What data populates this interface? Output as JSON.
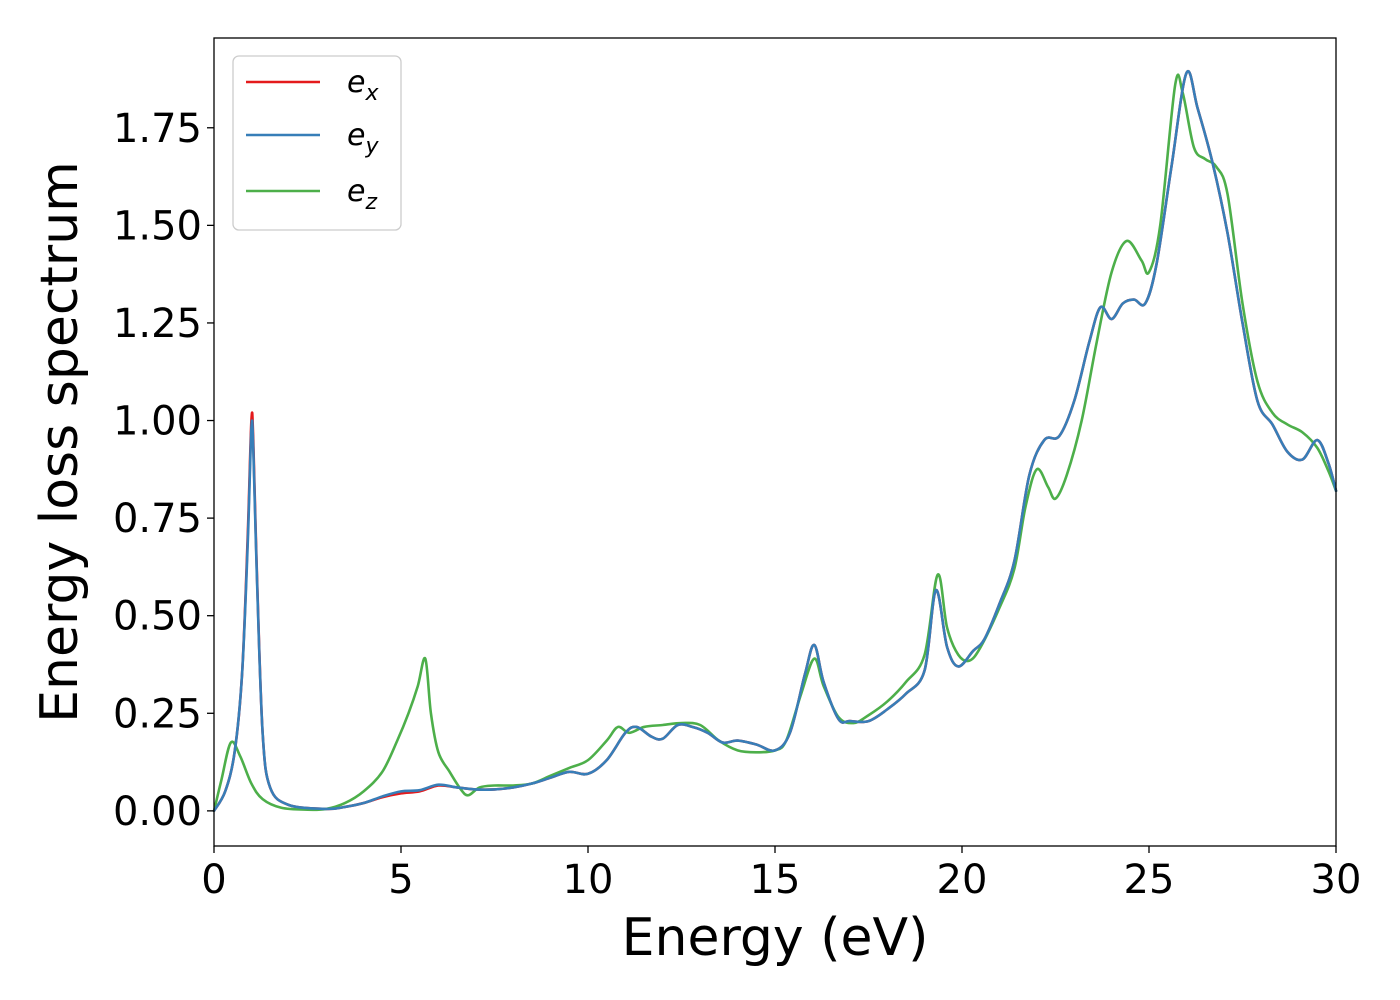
{
  "chart_data": {
    "type": "line",
    "title": "",
    "xlabel": "Energy (eV)",
    "ylabel": "Energy loss spectrum",
    "xlim": [
      0,
      30
    ],
    "ylim": [
      -0.09,
      1.98
    ],
    "xticks": [
      0,
      5,
      10,
      15,
      20,
      25,
      30
    ],
    "xtick_labels": [
      "0",
      "5",
      "10",
      "15",
      "20",
      "25",
      "30"
    ],
    "yticks": [
      0.0,
      0.25,
      0.5,
      0.75,
      1.0,
      1.25,
      1.5,
      1.75
    ],
    "ytick_labels": [
      "0.00",
      "0.25",
      "0.50",
      "0.75",
      "1.00",
      "1.25",
      "1.50",
      "1.75"
    ],
    "grid": false,
    "legend_position": "top-left",
    "series": [
      {
        "name": "e_x",
        "label_base": "e",
        "label_sub": "x",
        "color": "#e41a1c",
        "points": [
          [
            0,
            0.0
          ],
          [
            0.3,
            0.05
          ],
          [
            0.55,
            0.15
          ],
          [
            0.75,
            0.35
          ],
          [
            0.9,
            0.7
          ],
          [
            1.0,
            1.0
          ],
          [
            1.05,
            0.95
          ],
          [
            1.15,
            0.6
          ],
          [
            1.3,
            0.2
          ],
          [
            1.5,
            0.06
          ],
          [
            2.0,
            0.015
          ],
          [
            3.0,
            0.005
          ],
          [
            3.5,
            0.01
          ],
          [
            4.0,
            0.02
          ],
          [
            4.5,
            0.035
          ],
          [
            5.0,
            0.045
          ],
          [
            5.5,
            0.05
          ],
          [
            6.0,
            0.065
          ],
          [
            6.5,
            0.06
          ],
          [
            7.0,
            0.055
          ],
          [
            7.5,
            0.055
          ],
          [
            8.0,
            0.06
          ],
          [
            8.5,
            0.07
          ],
          [
            9.0,
            0.085
          ],
          [
            9.5,
            0.1
          ],
          [
            10.0,
            0.095
          ],
          [
            10.5,
            0.13
          ],
          [
            11.0,
            0.2
          ],
          [
            11.3,
            0.215
          ],
          [
            11.7,
            0.19
          ],
          [
            12.0,
            0.185
          ],
          [
            12.4,
            0.22
          ],
          [
            12.8,
            0.215
          ],
          [
            13.2,
            0.2
          ],
          [
            13.6,
            0.175
          ],
          [
            14.0,
            0.18
          ],
          [
            14.5,
            0.17
          ],
          [
            15.0,
            0.155
          ],
          [
            15.4,
            0.2
          ],
          [
            15.8,
            0.35
          ],
          [
            16.05,
            0.425
          ],
          [
            16.3,
            0.33
          ],
          [
            16.7,
            0.235
          ],
          [
            17.0,
            0.23
          ],
          [
            17.5,
            0.23
          ],
          [
            18.0,
            0.26
          ],
          [
            18.5,
            0.3
          ],
          [
            19.0,
            0.36
          ],
          [
            19.3,
            0.565
          ],
          [
            19.6,
            0.42
          ],
          [
            19.9,
            0.37
          ],
          [
            20.3,
            0.41
          ],
          [
            20.6,
            0.44
          ],
          [
            21.0,
            0.53
          ],
          [
            21.4,
            0.64
          ],
          [
            21.8,
            0.86
          ],
          [
            22.2,
            0.95
          ],
          [
            22.6,
            0.96
          ],
          [
            23.0,
            1.05
          ],
          [
            23.4,
            1.2
          ],
          [
            23.7,
            1.29
          ],
          [
            24.0,
            1.26
          ],
          [
            24.3,
            1.3
          ],
          [
            24.6,
            1.31
          ],
          [
            24.9,
            1.3
          ],
          [
            25.2,
            1.4
          ],
          [
            25.6,
            1.65
          ],
          [
            26.0,
            1.89
          ],
          [
            26.3,
            1.8
          ],
          [
            26.7,
            1.66
          ],
          [
            27.1,
            1.48
          ],
          [
            27.5,
            1.25
          ],
          [
            27.9,
            1.05
          ],
          [
            28.3,
            0.99
          ],
          [
            28.7,
            0.92
          ],
          [
            29.1,
            0.9
          ],
          [
            29.5,
            0.95
          ],
          [
            29.8,
            0.89
          ],
          [
            30.0,
            0.82
          ]
        ]
      },
      {
        "name": "e_y",
        "label_base": "e",
        "label_sub": "y",
        "color": "#377eb8",
        "points": [
          [
            0,
            0.0
          ],
          [
            0.3,
            0.05
          ],
          [
            0.55,
            0.15
          ],
          [
            0.75,
            0.35
          ],
          [
            0.9,
            0.68
          ],
          [
            1.0,
            0.98
          ],
          [
            1.05,
            0.93
          ],
          [
            1.15,
            0.59
          ],
          [
            1.3,
            0.2
          ],
          [
            1.5,
            0.06
          ],
          [
            2.0,
            0.015
          ],
          [
            3.0,
            0.005
          ],
          [
            3.5,
            0.01
          ],
          [
            4.0,
            0.02
          ],
          [
            4.5,
            0.037
          ],
          [
            5.0,
            0.05
          ],
          [
            5.5,
            0.053
          ],
          [
            6.0,
            0.067
          ],
          [
            6.5,
            0.06
          ],
          [
            7.0,
            0.055
          ],
          [
            7.5,
            0.055
          ],
          [
            8.0,
            0.06
          ],
          [
            8.5,
            0.07
          ],
          [
            9.0,
            0.085
          ],
          [
            9.5,
            0.1
          ],
          [
            10.0,
            0.095
          ],
          [
            10.5,
            0.13
          ],
          [
            11.0,
            0.2
          ],
          [
            11.3,
            0.215
          ],
          [
            11.7,
            0.19
          ],
          [
            12.0,
            0.185
          ],
          [
            12.4,
            0.22
          ],
          [
            12.8,
            0.215
          ],
          [
            13.2,
            0.2
          ],
          [
            13.6,
            0.175
          ],
          [
            14.0,
            0.18
          ],
          [
            14.5,
            0.17
          ],
          [
            15.0,
            0.155
          ],
          [
            15.4,
            0.2
          ],
          [
            15.8,
            0.35
          ],
          [
            16.05,
            0.425
          ],
          [
            16.3,
            0.33
          ],
          [
            16.7,
            0.235
          ],
          [
            17.0,
            0.23
          ],
          [
            17.5,
            0.23
          ],
          [
            18.0,
            0.26
          ],
          [
            18.5,
            0.3
          ],
          [
            19.0,
            0.36
          ],
          [
            19.3,
            0.565
          ],
          [
            19.6,
            0.42
          ],
          [
            19.9,
            0.37
          ],
          [
            20.3,
            0.41
          ],
          [
            20.6,
            0.44
          ],
          [
            21.0,
            0.53
          ],
          [
            21.4,
            0.64
          ],
          [
            21.8,
            0.86
          ],
          [
            22.2,
            0.95
          ],
          [
            22.6,
            0.96
          ],
          [
            23.0,
            1.05
          ],
          [
            23.4,
            1.2
          ],
          [
            23.7,
            1.29
          ],
          [
            24.0,
            1.26
          ],
          [
            24.3,
            1.3
          ],
          [
            24.6,
            1.31
          ],
          [
            24.9,
            1.3
          ],
          [
            25.2,
            1.4
          ],
          [
            25.6,
            1.65
          ],
          [
            26.0,
            1.89
          ],
          [
            26.3,
            1.8
          ],
          [
            26.7,
            1.66
          ],
          [
            27.1,
            1.48
          ],
          [
            27.5,
            1.25
          ],
          [
            27.9,
            1.05
          ],
          [
            28.3,
            0.99
          ],
          [
            28.7,
            0.92
          ],
          [
            29.1,
            0.9
          ],
          [
            29.5,
            0.95
          ],
          [
            29.8,
            0.89
          ],
          [
            30.0,
            0.82
          ]
        ]
      },
      {
        "name": "e_z",
        "label_base": "e",
        "label_sub": "z",
        "color": "#4daf4a",
        "points": [
          [
            0,
            0.0
          ],
          [
            0.2,
            0.08
          ],
          [
            0.45,
            0.175
          ],
          [
            0.7,
            0.14
          ],
          [
            1.0,
            0.07
          ],
          [
            1.3,
            0.03
          ],
          [
            1.8,
            0.008
          ],
          [
            2.5,
            0.003
          ],
          [
            3.0,
            0.005
          ],
          [
            3.5,
            0.02
          ],
          [
            4.0,
            0.05
          ],
          [
            4.5,
            0.1
          ],
          [
            4.9,
            0.18
          ],
          [
            5.2,
            0.25
          ],
          [
            5.45,
            0.32
          ],
          [
            5.65,
            0.39
          ],
          [
            5.8,
            0.25
          ],
          [
            6.0,
            0.15
          ],
          [
            6.3,
            0.1
          ],
          [
            6.6,
            0.055
          ],
          [
            6.8,
            0.04
          ],
          [
            7.1,
            0.06
          ],
          [
            7.5,
            0.065
          ],
          [
            8.0,
            0.065
          ],
          [
            8.5,
            0.07
          ],
          [
            9.0,
            0.09
          ],
          [
            9.5,
            0.11
          ],
          [
            10.0,
            0.13
          ],
          [
            10.5,
            0.18
          ],
          [
            10.8,
            0.215
          ],
          [
            11.1,
            0.2
          ],
          [
            11.5,
            0.215
          ],
          [
            12.0,
            0.22
          ],
          [
            12.5,
            0.225
          ],
          [
            13.0,
            0.22
          ],
          [
            13.5,
            0.18
          ],
          [
            14.0,
            0.155
          ],
          [
            14.5,
            0.15
          ],
          [
            15.0,
            0.155
          ],
          [
            15.3,
            0.18
          ],
          [
            15.7,
            0.3
          ],
          [
            16.05,
            0.39
          ],
          [
            16.3,
            0.32
          ],
          [
            16.7,
            0.24
          ],
          [
            17.1,
            0.225
          ],
          [
            17.5,
            0.245
          ],
          [
            18.0,
            0.28
          ],
          [
            18.5,
            0.33
          ],
          [
            19.0,
            0.4
          ],
          [
            19.35,
            0.605
          ],
          [
            19.6,
            0.47
          ],
          [
            19.9,
            0.4
          ],
          [
            20.2,
            0.385
          ],
          [
            20.5,
            0.42
          ],
          [
            21.0,
            0.52
          ],
          [
            21.4,
            0.62
          ],
          [
            21.7,
            0.78
          ],
          [
            22.0,
            0.875
          ],
          [
            22.3,
            0.83
          ],
          [
            22.5,
            0.8
          ],
          [
            22.8,
            0.86
          ],
          [
            23.2,
            1.0
          ],
          [
            23.6,
            1.2
          ],
          [
            24.0,
            1.38
          ],
          [
            24.4,
            1.46
          ],
          [
            24.8,
            1.41
          ],
          [
            25.0,
            1.38
          ],
          [
            25.3,
            1.5
          ],
          [
            25.7,
            1.86
          ],
          [
            25.9,
            1.84
          ],
          [
            26.2,
            1.7
          ],
          [
            26.5,
            1.67
          ],
          [
            26.8,
            1.65
          ],
          [
            27.1,
            1.58
          ],
          [
            27.5,
            1.3
          ],
          [
            27.9,
            1.1
          ],
          [
            28.3,
            1.02
          ],
          [
            28.7,
            0.99
          ],
          [
            29.1,
            0.97
          ],
          [
            29.5,
            0.93
          ],
          [
            29.8,
            0.87
          ],
          [
            30.0,
            0.82
          ]
        ]
      }
    ]
  }
}
